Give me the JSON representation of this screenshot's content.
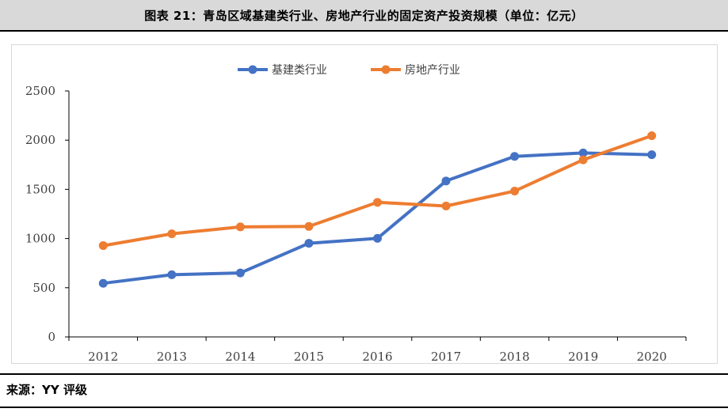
{
  "title": "图表 21：青岛区域基建类行业、房地产行业的固定资产投资规模（单位：亿元）",
  "source": "来源：YY 评级",
  "colors": {
    "series1": "#4472c4",
    "series2": "#ed7d31",
    "axis": "#000000",
    "frame": "#d9d9d9"
  },
  "chart_data": {
    "type": "line",
    "categories": [
      "2012",
      "2013",
      "2014",
      "2015",
      "2016",
      "2017",
      "2018",
      "2019",
      "2020"
    ],
    "series": [
      {
        "name": "基建类行业",
        "color": "#4472c4",
        "values": [
          545,
          632,
          650,
          952,
          1002,
          1585,
          1835,
          1870,
          1852
        ]
      },
      {
        "name": "房地产行业",
        "color": "#ed7d31",
        "values": [
          928,
          1048,
          1118,
          1123,
          1368,
          1330,
          1482,
          1800,
          2045
        ]
      }
    ],
    "ylim": [
      0,
      2500
    ],
    "yticks": [
      "0",
      "500",
      "1000",
      "1500",
      "2000",
      "2500"
    ],
    "grid": false,
    "legend": "top"
  }
}
